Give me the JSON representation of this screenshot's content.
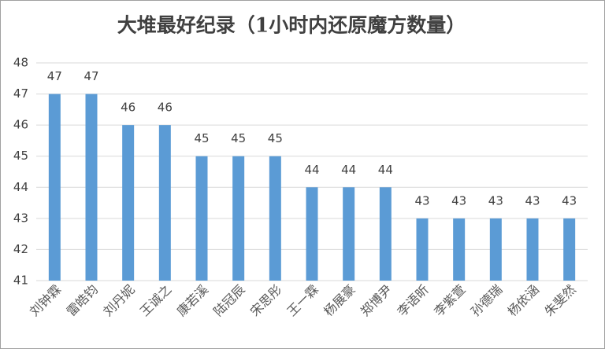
{
  "chart_data": {
    "type": "bar",
    "title": "大堆最好纪录（1小时内还原魔方数量）",
    "categories": [
      "刘钟霖",
      "雷皓钧",
      "刘丹妮",
      "王诚之",
      "康若溪",
      "陆冠辰",
      "宋思彤",
      "王一霖",
      "杨展豪",
      "郑博尹",
      "李语昕",
      "李紫萱",
      "孙德瑞",
      "杨依涵",
      "朱斐然"
    ],
    "values": [
      47,
      47,
      46,
      46,
      45,
      45,
      45,
      44,
      44,
      44,
      43,
      43,
      43,
      43,
      43
    ],
    "color": "#5b9bd5",
    "ylim": [
      41,
      48
    ],
    "yticks": [
      41,
      42,
      43,
      44,
      45,
      46,
      47,
      48
    ],
    "grid": true
  }
}
